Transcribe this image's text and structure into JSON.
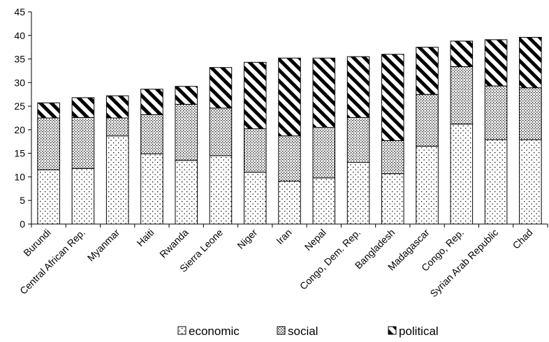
{
  "chart_data": {
    "type": "bar",
    "stacked": true,
    "categories": [
      "Burundi",
      "Central African Rep.",
      "Myanmar",
      "Haiti",
      "Rwanda",
      "Sierra Leone",
      "Niger",
      "Iran",
      "Nepal",
      "Congo, Dem. Rep.",
      "Bangladesh",
      "Madagascar",
      "Congo, Rep.",
      "Syrian Arab Republic",
      "Chad"
    ],
    "series": [
      {
        "name": "economic",
        "pattern": "dots-sparse",
        "values": [
          11.5,
          11.8,
          18.7,
          14.9,
          13.5,
          14.5,
          11.0,
          9.1,
          9.8,
          13.1,
          10.7,
          16.5,
          21.2,
          17.9,
          17.9
        ]
      },
      {
        "name": "social",
        "pattern": "dots-dense",
        "values": [
          11.0,
          10.8,
          3.8,
          8.3,
          11.9,
          10.1,
          9.2,
          9.6,
          10.7,
          9.5,
          7.0,
          11.0,
          12.2,
          11.4,
          11.0
        ]
      },
      {
        "name": "political",
        "pattern": "diagonal-hatch",
        "values": [
          3.2,
          4.2,
          4.7,
          5.4,
          3.8,
          8.6,
          14.1,
          16.5,
          14.7,
          12.9,
          18.3,
          10.0,
          5.4,
          9.8,
          10.7
        ]
      }
    ],
    "ylim": [
      0,
      45
    ],
    "yticks": [
      "0",
      "5",
      "10",
      "15",
      "20",
      "25",
      "30",
      "35",
      "40",
      "45"
    ],
    "legend_position": "bottom",
    "grid": false,
    "title": "",
    "xlabel": "",
    "ylabel": ""
  }
}
